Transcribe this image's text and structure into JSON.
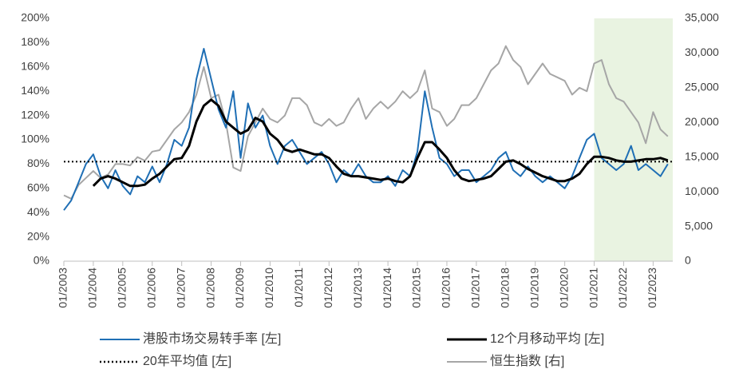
{
  "chart_data": {
    "type": "line",
    "x": [
      "2003-01",
      "2003-04",
      "2003-07",
      "2003-10",
      "2004-01",
      "2004-04",
      "2004-07",
      "2004-10",
      "2005-01",
      "2005-04",
      "2005-07",
      "2005-10",
      "2006-01",
      "2006-04",
      "2006-07",
      "2006-10",
      "2007-01",
      "2007-04",
      "2007-07",
      "2007-10",
      "2008-01",
      "2008-04",
      "2008-07",
      "2008-10",
      "2009-01",
      "2009-04",
      "2009-07",
      "2009-10",
      "2010-01",
      "2010-04",
      "2010-07",
      "2010-10",
      "2011-01",
      "2011-04",
      "2011-07",
      "2011-10",
      "2012-01",
      "2012-04",
      "2012-07",
      "2012-10",
      "2013-01",
      "2013-04",
      "2013-07",
      "2013-10",
      "2014-01",
      "2014-04",
      "2014-07",
      "2014-10",
      "2015-01",
      "2015-04",
      "2015-07",
      "2015-10",
      "2016-01",
      "2016-04",
      "2016-07",
      "2016-10",
      "2017-01",
      "2017-04",
      "2017-07",
      "2017-10",
      "2018-01",
      "2018-04",
      "2018-07",
      "2018-10",
      "2019-01",
      "2019-04",
      "2019-07",
      "2019-10",
      "2020-01",
      "2020-04",
      "2020-07",
      "2020-10",
      "2021-01",
      "2021-04",
      "2021-07",
      "2021-10",
      "2022-01",
      "2022-04",
      "2022-07",
      "2022-10",
      "2023-01",
      "2023-04",
      "2023-07"
    ],
    "series": [
      {
        "name": "港股市场交易转手率 [左]",
        "color": "#1f6fb5",
        "width": 2,
        "values": [
          42,
          50,
          65,
          80,
          88,
          70,
          60,
          75,
          62,
          55,
          70,
          65,
          78,
          65,
          80,
          100,
          95,
          110,
          150,
          175,
          150,
          125,
          110,
          140,
          85,
          130,
          110,
          120,
          95,
          80,
          95,
          100,
          90,
          80,
          85,
          90,
          80,
          65,
          75,
          70,
          80,
          70,
          65,
          65,
          70,
          62,
          75,
          70,
          90,
          140,
          110,
          85,
          80,
          70,
          75,
          75,
          65,
          70,
          75,
          85,
          90,
          75,
          70,
          78,
          70,
          65,
          70,
          65,
          60,
          70,
          85,
          100,
          105,
          85,
          80,
          75,
          80,
          95,
          75,
          80,
          75,
          70,
          80
        ]
      },
      {
        "name": "12个月移动平均 [左]",
        "color": "#000000",
        "width": 3,
        "values": [
          null,
          null,
          null,
          null,
          62,
          68,
          70,
          68,
          65,
          62,
          62,
          63,
          68,
          72,
          78,
          84,
          85,
          95,
          115,
          128,
          133,
          128,
          115,
          110,
          105,
          108,
          118,
          115,
          105,
          100,
          92,
          90,
          92,
          90,
          88,
          88,
          85,
          78,
          72,
          70,
          70,
          69,
          68,
          67,
          68,
          66,
          65,
          70,
          85,
          98,
          98,
          92,
          85,
          75,
          68,
          66,
          67,
          68,
          70,
          76,
          82,
          83,
          80,
          76,
          73,
          70,
          68,
          66,
          66,
          68,
          72,
          80,
          86,
          86,
          85,
          83,
          82,
          82,
          83,
          84,
          84,
          85,
          83
        ]
      },
      {
        "name": "恒生指数 [右]",
        "color": "#a6a6a6",
        "width": 2,
        "axis": "y2",
        "values": [
          9500,
          9000,
          11000,
          12000,
          13000,
          12000,
          12500,
          14000,
          14000,
          13800,
          15000,
          14500,
          15800,
          16000,
          17500,
          19000,
          20000,
          21500,
          24000,
          28000,
          23500,
          24000,
          20000,
          13500,
          13000,
          18000,
          20000,
          22000,
          20500,
          20000,
          21000,
          23500,
          23500,
          22500,
          20000,
          19500,
          20500,
          19500,
          20000,
          22000,
          23500,
          20500,
          22000,
          23000,
          22000,
          23000,
          24500,
          23500,
          24500,
          27500,
          22000,
          21500,
          19500,
          20500,
          22500,
          22500,
          23500,
          25500,
          27500,
          28500,
          31000,
          29000,
          28000,
          25500,
          27000,
          28500,
          27000,
          26500,
          26000,
          24000,
          25000,
          24500,
          28500,
          29000,
          25500,
          23500,
          23000,
          21500,
          20000,
          17000,
          21500,
          19000,
          18000
        ]
      }
    ],
    "hline": {
      "name": "20年平均值  [左]",
      "value": 82,
      "color": "#000000"
    },
    "highlight": {
      "x0": "2021-01",
      "x1": "2023-09",
      "color": "#e9f3e1"
    },
    "xlim": [
      "2003-01",
      "2023-09"
    ],
    "xticks": [
      "01/2003",
      "01/2004",
      "01/2005",
      "01/2006",
      "01/2007",
      "01/2008",
      "01/2009",
      "01/2010",
      "01/2011",
      "01/2012",
      "01/2013",
      "01/2014",
      "01/2015",
      "01/2016",
      "01/2017",
      "01/2018",
      "01/2019",
      "01/2020",
      "01/2021",
      "01/2022",
      "01/2023"
    ],
    "ylim": [
      0,
      200
    ],
    "yticks": [
      {
        "value": 0,
        "label": "0%"
      },
      {
        "value": 20,
        "label": "20%"
      },
      {
        "value": 40,
        "label": "40%"
      },
      {
        "value": 60,
        "label": "60%"
      },
      {
        "value": 80,
        "label": "80%"
      },
      {
        "value": 100,
        "label": "100%"
      },
      {
        "value": 120,
        "label": "120%"
      },
      {
        "value": 140,
        "label": "140%"
      },
      {
        "value": 160,
        "label": "160%"
      },
      {
        "value": 180,
        "label": "180%"
      },
      {
        "value": 200,
        "label": "200%"
      }
    ],
    "y2lim": [
      0,
      35000
    ],
    "y2ticks": [
      0,
      {
        "value": 5000,
        "label": "5,000"
      },
      {
        "value": 10000,
        "label": "10,000"
      },
      {
        "value": 15000,
        "label": "15,000"
      },
      {
        "value": 20000,
        "label": "20,000"
      },
      {
        "value": 25000,
        "label": "25,000"
      },
      {
        "value": 30000,
        "label": "30,000"
      },
      {
        "value": 35000,
        "label": "35,000"
      }
    ]
  }
}
